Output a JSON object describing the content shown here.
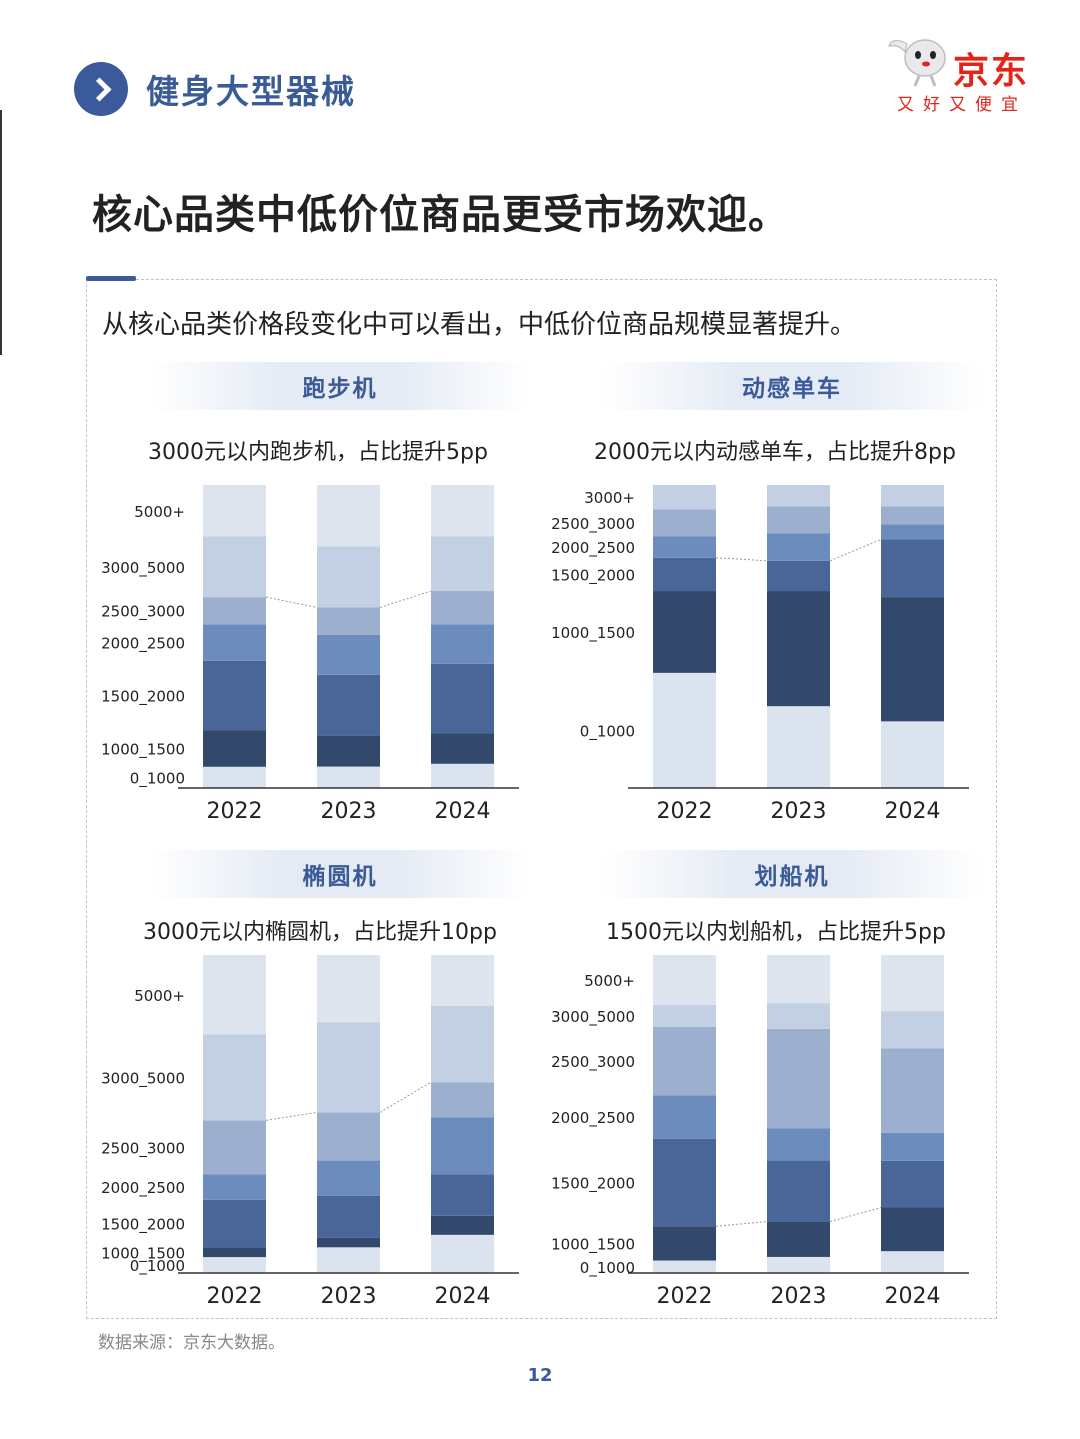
{
  "header": {
    "section_title": "健身大型器械"
  },
  "brand": {
    "name": "京东",
    "slogan": "又好又便宜"
  },
  "headline": "核心品类中低价位商品更受市场欢迎。",
  "intro": "从核心品类价格段变化中可以看出，中低价位商品规模显著提升。",
  "colors": {
    "accent": "#3b5a98",
    "brand_red": "#e1251b",
    "segments": [
      "#dbe3ee",
      "#33496b",
      "#4a6699",
      "#6c8cbd",
      "#9cafcf",
      "#c3cfe3",
      "#dde4ee"
    ]
  },
  "chart_data": [
    {
      "type": "bar",
      "stacked": true,
      "title": "跑步机",
      "subtitle": "3000元以内跑步机，占比提升5pp",
      "categories": [
        "2022",
        "2023",
        "2024"
      ],
      "segment_labels": [
        "0_1000",
        "1000_1500",
        "1500_2000",
        "2000_2500",
        "2500_3000",
        "3000_5000",
        "5000+"
      ],
      "ylim": [
        0,
        100
      ],
      "series": [
        {
          "name": "0_1000",
          "values": [
            7,
            7,
            8
          ]
        },
        {
          "name": "1000_1500",
          "values": [
            12,
            10,
            10
          ]
        },
        {
          "name": "1500_2000",
          "values": [
            23,
            20,
            23
          ]
        },
        {
          "name": "2000_2500",
          "values": [
            12,
            13,
            13
          ]
        },
        {
          "name": "2500_3000",
          "values": [
            9,
            9,
            11
          ]
        },
        {
          "name": "3000_5000",
          "values": [
            20,
            20,
            18
          ]
        },
        {
          "name": "5000+",
          "values": [
            17,
            20,
            17
          ]
        }
      ]
    },
    {
      "type": "bar",
      "stacked": true,
      "title": "动感单车",
      "subtitle": "2000元以内动感单车，占比提升8pp",
      "categories": [
        "2022",
        "2023",
        "2024"
      ],
      "segment_labels": [
        "0_1000",
        "1000_1500",
        "1500_2000",
        "2000_2500",
        "2500_3000",
        "3000+"
      ],
      "ylim": [
        0,
        100
      ],
      "series": [
        {
          "name": "0_1000",
          "values": [
            38,
            27,
            22
          ]
        },
        {
          "name": "1000_1500",
          "values": [
            27,
            38,
            41
          ]
        },
        {
          "name": "1500_2000",
          "values": [
            11,
            10,
            19
          ]
        },
        {
          "name": "2000_2500",
          "values": [
            7,
            9,
            5
          ]
        },
        {
          "name": "2500_3000",
          "values": [
            9,
            9,
            6
          ]
        },
        {
          "name": "3000+",
          "values": [
            8,
            7,
            7
          ]
        }
      ]
    },
    {
      "type": "bar",
      "stacked": true,
      "title": "椭圆机",
      "subtitle": "3000元以内椭圆机，占比提升10pp",
      "categories": [
        "2022",
        "2023",
        "2024"
      ],
      "segment_labels": [
        "0_1000",
        "1000_1500",
        "1500_2000",
        "2000_2500",
        "2500_3000",
        "3000_5000",
        "5000+"
      ],
      "ylim": [
        0,
        100
      ],
      "series": [
        {
          "name": "0_1000",
          "values": [
            5,
            8,
            12
          ]
        },
        {
          "name": "1000_1500",
          "values": [
            3,
            3,
            6
          ]
        },
        {
          "name": "1500_2000",
          "values": [
            15,
            13,
            13
          ]
        },
        {
          "name": "2000_2500",
          "values": [
            8,
            11,
            18
          ]
        },
        {
          "name": "2500_3000",
          "values": [
            17,
            15,
            11
          ]
        },
        {
          "name": "3000_5000",
          "values": [
            27,
            28,
            24
          ]
        },
        {
          "name": "5000+",
          "values": [
            25,
            21,
            16
          ]
        }
      ]
    },
    {
      "type": "bar",
      "stacked": true,
      "title": "划船机",
      "subtitle": "1500元以内划船机，占比提升5pp",
      "categories": [
        "2022",
        "2023",
        "2024"
      ],
      "segment_labels": [
        "0_1000",
        "1000_1500",
        "1500_2000",
        "2000_2500",
        "2500_3000",
        "3000_5000",
        "5000+"
      ],
      "ylim": [
        0,
        100
      ],
      "series": [
        {
          "name": "0_1000",
          "values": [
            4,
            5,
            7
          ]
        },
        {
          "name": "1000_1500",
          "values": [
            11,
            11,
            14
          ]
        },
        {
          "name": "1500_2000",
          "values": [
            28,
            19,
            15
          ]
        },
        {
          "name": "2000_2500",
          "values": [
            14,
            10,
            9
          ]
        },
        {
          "name": "2500_3000",
          "values": [
            22,
            31,
            27
          ]
        },
        {
          "name": "3000_5000",
          "values": [
            7,
            8,
            12
          ]
        },
        {
          "name": "5000+",
          "values": [
            16,
            15,
            18
          ]
        }
      ]
    }
  ],
  "footer": {
    "source": "数据来源：京东大数据。",
    "page": "12"
  }
}
